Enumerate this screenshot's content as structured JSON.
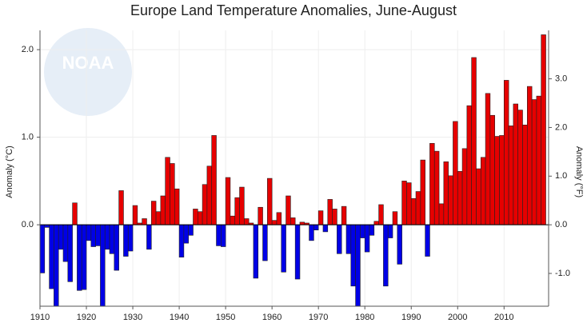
{
  "chart_data": {
    "type": "bar",
    "title": "Europe Land Temperature Anomalies, June-August",
    "watermark": "NOAA",
    "ylabel": "Anomaly (°C)",
    "y2label": "Anomaly (°F)",
    "x": [
      1910,
      1911,
      1912,
      1913,
      1914,
      1915,
      1916,
      1917,
      1918,
      1919,
      1920,
      1921,
      1922,
      1923,
      1924,
      1925,
      1926,
      1927,
      1928,
      1929,
      1930,
      1931,
      1932,
      1933,
      1934,
      1935,
      1936,
      1937,
      1938,
      1939,
      1940,
      1941,
      1942,
      1943,
      1944,
      1945,
      1946,
      1947,
      1948,
      1949,
      1950,
      1951,
      1952,
      1953,
      1954,
      1955,
      1956,
      1957,
      1958,
      1959,
      1960,
      1961,
      1962,
      1963,
      1964,
      1965,
      1966,
      1967,
      1968,
      1969,
      1970,
      1971,
      1972,
      1973,
      1974,
      1975,
      1976,
      1977,
      1978,
      1979,
      1980,
      1981,
      1982,
      1983,
      1984,
      1985,
      1986,
      1987,
      1988,
      1989,
      1990,
      1991,
      1992,
      1993,
      1994,
      1995,
      1996,
      1997,
      1998,
      1999,
      2000,
      2001,
      2002,
      2003,
      2004,
      2005,
      2006,
      2007,
      2008,
      2009,
      2010,
      2011,
      2012,
      2013,
      2014,
      2015,
      2016,
      2017,
      2018
    ],
    "values": [
      -0.55,
      -0.03,
      -0.73,
      -0.95,
      -0.28,
      -0.42,
      -0.65,
      0.25,
      -0.75,
      -0.74,
      -0.18,
      -0.25,
      -0.24,
      -0.95,
      -0.28,
      -0.33,
      -0.52,
      0.39,
      -0.36,
      -0.3,
      0.22,
      0.02,
      0.07,
      -0.28,
      0.27,
      0.15,
      0.33,
      0.77,
      0.7,
      0.41,
      -0.37,
      -0.21,
      -0.12,
      0.18,
      0.15,
      0.46,
      0.67,
      1.02,
      -0.24,
      -0.25,
      0.54,
      0.1,
      0.31,
      0.43,
      0.07,
      0.02,
      -0.61,
      0.2,
      -0.41,
      0.53,
      0.05,
      0.14,
      -0.54,
      0.33,
      0.08,
      -0.62,
      0.03,
      0.02,
      -0.18,
      -0.06,
      0.16,
      -0.08,
      0.29,
      0.18,
      -0.33,
      0.21,
      -0.33,
      -0.7,
      -0.95,
      -0.15,
      -0.31,
      -0.12,
      0.04,
      0.23,
      -0.7,
      -0.15,
      0.15,
      -0.45,
      0.5,
      0.48,
      0.3,
      0.38,
      0.74,
      -0.36,
      0.93,
      0.84,
      0.24,
      0.72,
      0.56,
      1.18,
      0.61,
      0.87,
      1.36,
      1.91,
      0.64,
      0.77,
      1.5,
      1.25,
      1.01,
      1.02,
      1.65,
      1.13,
      1.38,
      1.31,
      1.14,
      1.58,
      1.43,
      1.47,
      2.17
    ],
    "positive_color": "#e60000",
    "negative_color": "#0000e6",
    "xlim": [
      1910,
      2019.6
    ],
    "xticks": [
      1910,
      1920,
      1930,
      1940,
      1950,
      1960,
      1970,
      1980,
      1990,
      2000,
      2010
    ],
    "ylim": [
      -0.93,
      2.22
    ],
    "yticks": [
      {
        "value": 0,
        "label": "0.0"
      },
      {
        "value": 1,
        "label": "1.0"
      },
      {
        "value": 2,
        "label": "2.0"
      }
    ],
    "y2lim": [
      -1.674,
      3.996
    ],
    "y2ticks": [
      {
        "value": -1,
        "label": "-1.0"
      },
      {
        "value": 0,
        "label": "0.0"
      },
      {
        "value": 1,
        "label": "1.0"
      },
      {
        "value": 2,
        "label": "2.0"
      },
      {
        "value": 3,
        "label": "3.0"
      }
    ],
    "grid": true
  }
}
